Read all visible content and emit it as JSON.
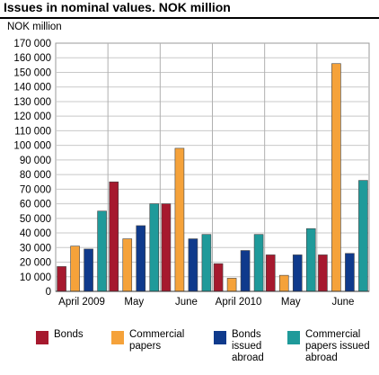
{
  "title": "Issues in nominal values. NOK million",
  "chart_data": {
    "type": "bar",
    "ylabel": "NOK million",
    "xlabel": "",
    "categories": [
      "April 2009",
      "May",
      "June",
      "April 2010",
      "May",
      "June"
    ],
    "ylim": [
      0,
      170000
    ],
    "yticks": [
      "0",
      "10 000",
      "20 000",
      "30 000",
      "40 000",
      "50 000",
      "60 000",
      "70 000",
      "80 000",
      "90 000",
      "100 000",
      "110 000",
      "120 000",
      "130 000",
      "140 000",
      "150 000",
      "160 000",
      "170 000"
    ],
    "grid": true,
    "legend_position": "bottom",
    "series": [
      {
        "name": "Bonds",
        "color": "#a6192e",
        "values": [
          17000,
          75000,
          60000,
          19000,
          25000,
          25000
        ]
      },
      {
        "name": "Commercial\npapers",
        "color": "#f5a23a",
        "values": [
          31000,
          36000,
          98000,
          9000,
          11000,
          156000
        ]
      },
      {
        "name": "Bonds\nissued\nabroad",
        "color": "#0f3a8c",
        "values": [
          29000,
          45000,
          36000,
          28000,
          25000,
          26000
        ]
      },
      {
        "name": "Commercial\npapers issued\nabroad",
        "color": "#1f9a9a",
        "values": [
          55000,
          60000,
          39000,
          39000,
          43000,
          76000
        ]
      }
    ]
  }
}
